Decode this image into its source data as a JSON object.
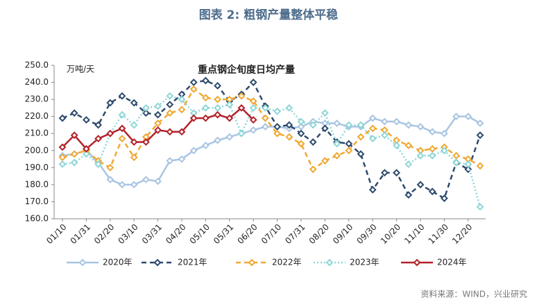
{
  "chart_data": {
    "type": "line",
    "title": "图表 2:  粗钢产量整体平稳",
    "subtitle": "重点钢企旬度日均产量",
    "y_label": "万吨/天",
    "source": "资料来源：WIND，兴业研究",
    "categories": [
      "01/10",
      null,
      "01/31",
      null,
      "02/20",
      null,
      "03/10",
      null,
      "03/31",
      null,
      "04/20",
      null,
      "05/10",
      null,
      "05/31",
      null,
      "06/20",
      null,
      "07/10",
      null,
      "07/31",
      null,
      "08/20",
      null,
      "09/10",
      null,
      "09/30",
      null,
      "10/20",
      null,
      "11/10",
      null,
      "11/30",
      null,
      "12/20",
      null
    ],
    "ylim": [
      160,
      250
    ],
    "yticks": [
      {
        "value": 160,
        "label": "160.0"
      },
      {
        "value": 170,
        "label": "170.0"
      },
      {
        "value": 180,
        "label": "180.0"
      },
      {
        "value": 190,
        "label": "190.0"
      },
      {
        "value": 200,
        "label": "200.0"
      },
      {
        "value": 210,
        "label": "210.0"
      },
      {
        "value": 220,
        "label": "220.0"
      },
      {
        "value": 230,
        "label": "230.0"
      },
      {
        "value": 240,
        "label": "240.0"
      },
      {
        "value": 250,
        "label": "250.0"
      }
    ],
    "legend": "bottom",
    "series": [
      {
        "name": "2020年",
        "color": "#a9c5e2",
        "style": "solid",
        "values": [
          197,
          198,
          200,
          193,
          183,
          180,
          180,
          183,
          182,
          194,
          195,
          200,
          203,
          206,
          208,
          210,
          212,
          214,
          214,
          213,
          214,
          217,
          216,
          216,
          214,
          214,
          219,
          217,
          217,
          215,
          214,
          211,
          210,
          220,
          220,
          216
        ]
      },
      {
        "name": "2021年",
        "color": "#2d4a6d",
        "style": "dashed",
        "values": [
          219,
          222,
          218,
          215,
          228,
          232,
          228,
          222,
          221,
          227,
          233,
          240,
          241,
          238,
          229,
          233,
          240,
          226,
          214,
          215,
          210,
          205,
          213,
          205,
          204,
          198,
          177,
          187,
          187,
          174,
          180,
          176,
          172,
          193,
          189,
          209
        ]
      },
      {
        "name": "2022年",
        "color": "#f0a832",
        "style": "dashed",
        "values": [
          196,
          198,
          200,
          194,
          190,
          207,
          196,
          208,
          216,
          222,
          224,
          236,
          231,
          230,
          230,
          232,
          229,
          219,
          210,
          208,
          204,
          189,
          194,
          197,
          200,
          208,
          213,
          212,
          206,
          203,
          200,
          201,
          202,
          197,
          195,
          191
        ]
      },
      {
        "name": "2023年",
        "color": "#8fd6d6",
        "style": "dotted",
        "values": [
          192,
          193,
          198,
          192,
          210,
          221,
          215,
          225,
          226,
          232,
          230,
          222,
          225,
          225,
          227,
          210,
          225,
          225,
          223,
          225,
          217,
          215,
          222,
          204,
          215,
          215,
          207,
          209,
          203,
          192,
          197,
          197,
          200,
          193,
          192,
          167
        ]
      },
      {
        "name": "2024年",
        "color": "#b2222a",
        "style": "solid",
        "values": [
          202,
          209,
          201,
          207,
          210,
          213,
          205,
          205,
          212,
          211,
          211,
          219,
          219,
          221,
          219,
          225,
          218,
          null,
          null,
          null,
          null,
          null,
          null,
          null,
          null,
          null,
          null,
          null,
          null,
          null,
          null,
          null,
          null,
          null,
          null,
          null
        ]
      }
    ]
  }
}
